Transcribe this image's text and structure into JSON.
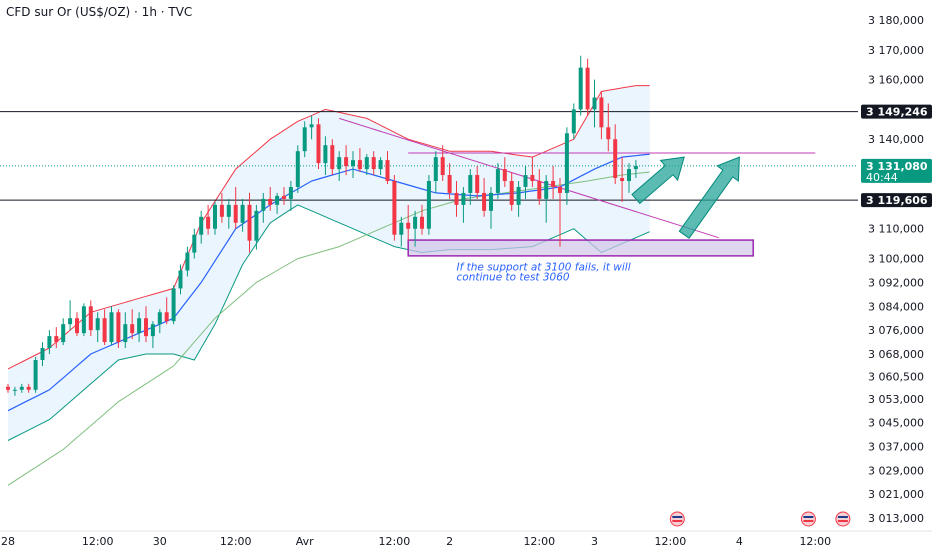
{
  "header": {
    "title": "CFD sur Or (US$/OZ) · 1h · TVC"
  },
  "colors": {
    "up": "#089981",
    "down": "#f23645",
    "bb_upper": "#f23645",
    "bb_lower": "#089981",
    "bb_fill": "#e3f2fd",
    "ma_fast": "#2962ff",
    "ma_slow": "#7fbf7f",
    "current_price": "#089981",
    "box_fill": "#d1c4e9",
    "box_stroke": "#9c27b0",
    "arrow": "#26a69a",
    "trendline": "#c23bb5",
    "hline": "#131722",
    "resist_line": "#c23bb5"
  },
  "chart_data": {
    "type": "candlestick",
    "title": "CFD sur Or (US$/OZ) · 1h · TVC",
    "ylim": [
      3009000,
      3184000
    ],
    "y_ticks": [
      "3 180,000",
      "3 170,000",
      "3 160,000",
      "3 149,246",
      "3 140,000",
      "3 131,080",
      "3 119,606",
      "3 110,000",
      "3 100,000",
      "3 092,000",
      "3 084,000",
      "3 076,000",
      "3 068,000",
      "3 060,500",
      "3 053,000",
      "3 045,000",
      "3 037,000",
      "3 029,000",
      "3 021,000",
      "3 013,000"
    ],
    "y_tick_values": [
      3180000,
      3170000,
      3160000,
      3149246,
      3140000,
      3131080,
      3119606,
      3110000,
      3100000,
      3092000,
      3084000,
      3076000,
      3068000,
      3060500,
      3053000,
      3045000,
      3037000,
      3029000,
      3021000,
      3013000
    ],
    "x_ticks": [
      "28",
      "12:00",
      "30",
      "12:00",
      "Avr",
      "12:00",
      "2",
      "12:00",
      "3",
      "12:00",
      "4",
      "12:00"
    ],
    "x_tick_candles": [
      0,
      13,
      22,
      33,
      43,
      56,
      64,
      77,
      85,
      96,
      106,
      117
    ],
    "countdown": "40:44",
    "price_lines": [
      {
        "label": "3 149,246",
        "value": 3149246
      },
      {
        "label": "3 119,606",
        "value": 3119606
      }
    ],
    "current_price": {
      "label": "3 131,080",
      "value": 3131080
    },
    "resistance_level": 3135400,
    "support_zone": {
      "low": 3100900,
      "high": 3106200,
      "from_candle": 58,
      "to_candle": 108
    },
    "trendline": {
      "from": [
        48,
        3147000
      ],
      "to": [
        103,
        3107000
      ]
    },
    "arrows": [
      {
        "from": [
          91,
          3120000
        ],
        "to": [
          98,
          3134000
        ]
      },
      {
        "from": [
          98,
          3108000
        ],
        "to": [
          106,
          3134000
        ]
      }
    ],
    "annotation": {
      "lines": [
        "If the support at 3100 fails, it will",
        "continue to test 3060"
      ],
      "anchor": [
        65,
        3096000
      ]
    },
    "candles": [
      [
        3057,
        3058,
        3055,
        3056
      ],
      [
        3056,
        3057,
        3054,
        3056
      ],
      [
        3056,
        3058,
        3055,
        3057
      ],
      [
        3057,
        3058,
        3055,
        3056
      ],
      [
        3056,
        3067,
        3055,
        3066
      ],
      [
        3066,
        3072,
        3064,
        3070
      ],
      [
        3070,
        3076,
        3068,
        3074
      ],
      [
        3074,
        3077,
        3070,
        3072
      ],
      [
        3072,
        3080,
        3071,
        3078
      ],
      [
        3078,
        3086,
        3076,
        3080
      ],
      [
        3080,
        3082,
        3074,
        3075
      ],
      [
        3075,
        3085,
        3074,
        3084
      ],
      [
        3084,
        3086,
        3074,
        3076
      ],
      [
        3076,
        3082,
        3072,
        3080
      ],
      [
        3080,
        3083,
        3071,
        3072
      ],
      [
        3072,
        3084,
        3071,
        3082
      ],
      [
        3082,
        3083,
        3070,
        3072
      ],
      [
        3072,
        3082,
        3070,
        3078
      ],
      [
        3078,
        3083,
        3073,
        3075
      ],
      [
        3075,
        3082,
        3072,
        3080
      ],
      [
        3080,
        3084,
        3072,
        3074
      ],
      [
        3074,
        3079,
        3070,
        3078
      ],
      [
        3078,
        3083,
        3075,
        3082
      ],
      [
        3082,
        3087,
        3078,
        3079
      ],
      [
        3079,
        3091,
        3078,
        3090
      ],
      [
        3090,
        3098,
        3088,
        3096
      ],
      [
        3096,
        3104,
        3094,
        3102
      ],
      [
        3102,
        3110,
        3100,
        3108
      ],
      [
        3108,
        3116,
        3105,
        3114
      ],
      [
        3114,
        3118,
        3108,
        3110
      ],
      [
        3110,
        3119,
        3108,
        3118
      ],
      [
        3118,
        3122,
        3112,
        3114
      ],
      [
        3114,
        3120,
        3110,
        3118
      ],
      [
        3118,
        3124,
        3110,
        3112
      ],
      [
        3112,
        3120,
        3109,
        3118
      ],
      [
        3118,
        3122,
        3102,
        3106
      ],
      [
        3106,
        3118,
        3103,
        3116
      ],
      [
        3116,
        3122,
        3112,
        3120
      ],
      [
        3120,
        3124,
        3116,
        3118
      ],
      [
        3118,
        3122,
        3115,
        3121
      ],
      [
        3121,
        3124,
        3118,
        3120
      ],
      [
        3120,
        3126,
        3116,
        3124
      ],
      [
        3124,
        3138,
        3122,
        3136
      ],
      [
        3136,
        3146,
        3134,
        3144
      ],
      [
        3144,
        3148,
        3140,
        3145
      ],
      [
        3145,
        3147,
        3130,
        3132
      ],
      [
        3132,
        3141,
        3128,
        3138
      ],
      [
        3138,
        3140,
        3128,
        3130
      ],
      [
        3130,
        3136,
        3126,
        3134
      ],
      [
        3134,
        3138,
        3128,
        3131
      ],
      [
        3131,
        3136,
        3127,
        3133
      ],
      [
        3133,
        3137,
        3129,
        3130
      ],
      [
        3130,
        3135,
        3128,
        3134
      ],
      [
        3134,
        3136,
        3128,
        3130
      ],
      [
        3130,
        3134,
        3128,
        3133
      ],
      [
        3133,
        3136,
        3125,
        3126
      ],
      [
        3126,
        3128,
        3106,
        3108
      ],
      [
        3108,
        3114,
        3104,
        3112
      ],
      [
        3112,
        3118,
        3106,
        3110
      ],
      [
        3110,
        3116,
        3104,
        3114
      ],
      [
        3114,
        3118,
        3108,
        3110
      ],
      [
        3110,
        3128,
        3108,
        3126
      ],
      [
        3126,
        3136,
        3122,
        3134
      ],
      [
        3134,
        3138,
        3126,
        3128
      ],
      [
        3128,
        3132,
        3120,
        3122
      ],
      [
        3122,
        3126,
        3114,
        3118
      ],
      [
        3118,
        3124,
        3112,
        3122
      ],
      [
        3122,
        3130,
        3118,
        3128
      ],
      [
        3128,
        3131,
        3120,
        3122
      ],
      [
        3122,
        3127,
        3114,
        3116
      ],
      [
        3116,
        3124,
        3110,
        3122
      ],
      [
        3122,
        3132,
        3120,
        3130
      ],
      [
        3130,
        3134,
        3124,
        3126
      ],
      [
        3126,
        3129,
        3116,
        3118
      ],
      [
        3118,
        3126,
        3114,
        3124
      ],
      [
        3124,
        3131,
        3120,
        3128
      ],
      [
        3128,
        3134,
        3124,
        3126
      ],
      [
        3126,
        3130,
        3118,
        3120
      ],
      [
        3120,
        3128,
        3112,
        3126
      ],
      [
        3126,
        3131,
        3120,
        3124
      ],
      [
        3124,
        3127,
        3104,
        3122
      ],
      [
        3122,
        3144,
        3118,
        3142
      ],
      [
        3142,
        3152,
        3140,
        3150
      ],
      [
        3150,
        3168,
        3148,
        3164
      ],
      [
        3164,
        3167,
        3148,
        3150
      ],
      [
        3150,
        3160,
        3144,
        3154
      ],
      [
        3154,
        3156,
        3140,
        3144
      ],
      [
        3144,
        3152,
        3136,
        3140
      ],
      [
        3140,
        3145,
        3125,
        3127
      ],
      [
        3127,
        3134,
        3119,
        3126
      ],
      [
        3126,
        3132,
        3122,
        3130
      ],
      [
        3130,
        3133,
        3127,
        3131
      ]
    ],
    "bb_upper": [
      [
        0,
        3063
      ],
      [
        6,
        3070
      ],
      [
        12,
        3082
      ],
      [
        18,
        3086
      ],
      [
        24,
        3090
      ],
      [
        28,
        3112
      ],
      [
        33,
        3130
      ],
      [
        38,
        3140
      ],
      [
        42,
        3146
      ],
      [
        46,
        3150
      ],
      [
        52,
        3147
      ],
      [
        58,
        3140
      ],
      [
        64,
        3136
      ],
      [
        70,
        3136
      ],
      [
        76,
        3134
      ],
      [
        82,
        3140
      ],
      [
        86,
        3156
      ],
      [
        91,
        3158
      ],
      [
        93,
        3158
      ]
    ],
    "bb_lower": [
      [
        0,
        3039
      ],
      [
        6,
        3046
      ],
      [
        12,
        3058
      ],
      [
        16,
        3066
      ],
      [
        20,
        3068
      ],
      [
        24,
        3068
      ],
      [
        27,
        3066
      ],
      [
        30,
        3078
      ],
      [
        34,
        3098
      ],
      [
        38,
        3112
      ],
      [
        42,
        3118
      ],
      [
        46,
        3114
      ],
      [
        52,
        3108
      ],
      [
        56,
        3104
      ],
      [
        60,
        3102
      ],
      [
        64,
        3103
      ],
      [
        70,
        3103
      ],
      [
        76,
        3104
      ],
      [
        80,
        3108
      ],
      [
        82,
        3110
      ],
      [
        84,
        3106
      ],
      [
        86,
        3102
      ],
      [
        88,
        3104
      ],
      [
        90,
        3106
      ],
      [
        93,
        3109
      ]
    ],
    "ma_fast": [
      [
        0,
        3049
      ],
      [
        6,
        3056
      ],
      [
        12,
        3068
      ],
      [
        18,
        3074
      ],
      [
        24,
        3080
      ],
      [
        28,
        3092
      ],
      [
        33,
        3110
      ],
      [
        38,
        3118
      ],
      [
        44,
        3126
      ],
      [
        50,
        3130
      ],
      [
        56,
        3126
      ],
      [
        62,
        3122
      ],
      [
        68,
        3121
      ],
      [
        74,
        3122
      ],
      [
        80,
        3124
      ],
      [
        85,
        3130
      ],
      [
        89,
        3134
      ],
      [
        93,
        3135
      ]
    ],
    "ma_slow": [
      [
        0,
        3024
      ],
      [
        8,
        3036
      ],
      [
        16,
        3052
      ],
      [
        24,
        3064
      ],
      [
        30,
        3080
      ],
      [
        36,
        3092
      ],
      [
        42,
        3100
      ],
      [
        48,
        3104
      ],
      [
        54,
        3110
      ],
      [
        60,
        3116
      ],
      [
        66,
        3120
      ],
      [
        72,
        3122
      ],
      [
        78,
        3124
      ],
      [
        84,
        3126
      ],
      [
        89,
        3128
      ],
      [
        93,
        3129
      ]
    ]
  }
}
